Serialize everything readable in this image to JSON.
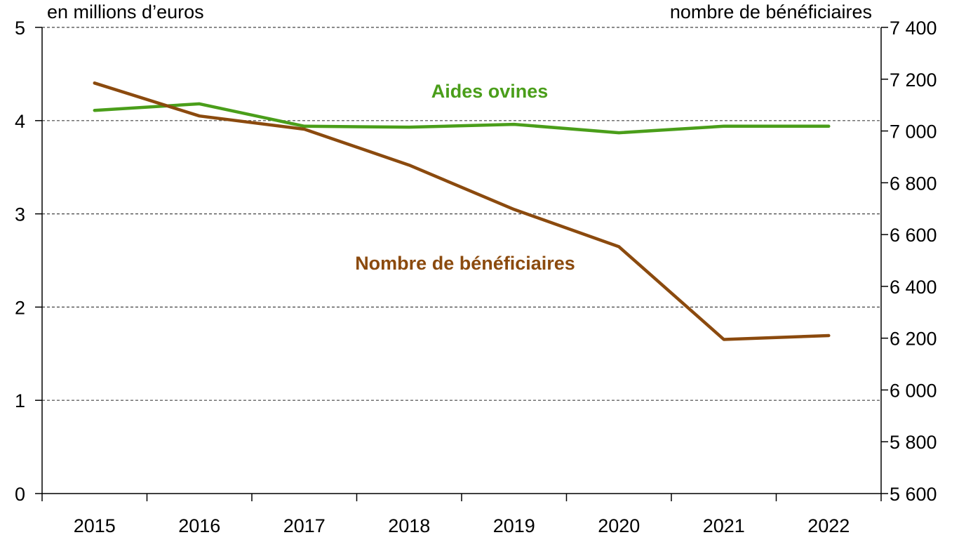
{
  "chart_data": {
    "type": "line",
    "categories": [
      "2015",
      "2016",
      "2017",
      "2018",
      "2019",
      "2020",
      "2021",
      "2022"
    ],
    "left_axis": {
      "label": "en millions d’euros",
      "range": [
        0,
        5
      ],
      "ticks": [
        0,
        1,
        2,
        3,
        4,
        5
      ],
      "tick_labels": [
        "0",
        "1",
        "2",
        "3",
        "4",
        "5"
      ]
    },
    "right_axis": {
      "label": "nombre de bénéficiaires",
      "range": [
        5600,
        7400
      ],
      "ticks": [
        5600,
        5800,
        6000,
        6200,
        6400,
        6600,
        6800,
        7000,
        7200,
        7400
      ],
      "tick_labels": [
        "5 600",
        "5 800",
        "6 000",
        "6 200",
        "6 400",
        "6 600",
        "6 800",
        "7 000",
        "7 200",
        "7 400"
      ]
    },
    "series": [
      {
        "name": "Aides ovines",
        "axis": "left",
        "color": "#4a9e1a",
        "values": [
          4.11,
          4.18,
          3.94,
          3.93,
          3.96,
          3.87,
          3.94,
          3.94
        ]
      },
      {
        "name": "Nombre de bénéficiaires",
        "axis": "right",
        "color": "#8b4a0e",
        "values": [
          7185,
          7058,
          7007,
          6868,
          6697,
          6553,
          6195,
          6210
        ]
      }
    ],
    "grid": "horizontal dashed at left-axis ticks 1 to 5"
  }
}
